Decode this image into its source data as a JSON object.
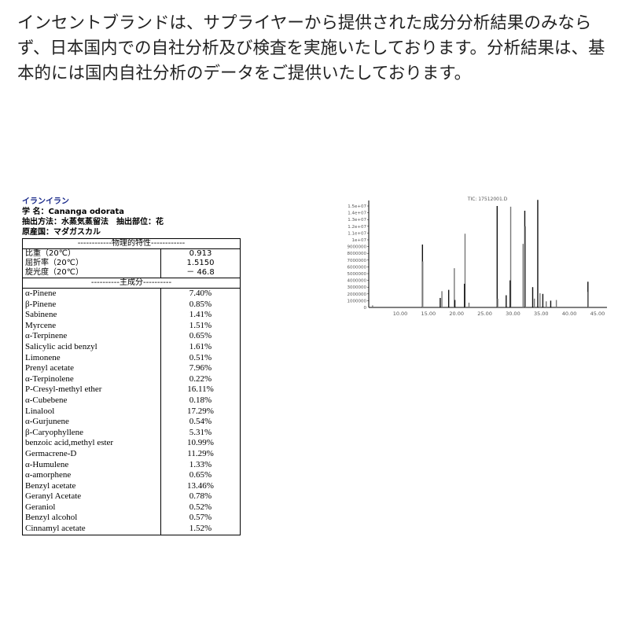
{
  "intro": "インセントブランドは、サプライヤーから提供された成分分析結果のみならず、日本国内での自社分析及び検査を実施いたしております。分析結果は、基本的には国内自社分析のデータをご提供いたしております。",
  "sheet": {
    "title": "イランイラン",
    "scientific": "学 名：Cananga odorata",
    "method": "抽出方法：水蒸気蒸留法　抽出部位：花",
    "origin": "原産国：マダガスカル",
    "phys_header": "------------物理的特性------------",
    "phys": [
      {
        "k": "比重（20℃）",
        "v": "0.913"
      },
      {
        "k": "屈折率（20℃）",
        "v": "1.5150"
      },
      {
        "k": "旋光度（20℃）",
        "v": "－ 46.8"
      }
    ],
    "comp_header": "----------主成分----------",
    "components": [
      {
        "k": "α-Pinene",
        "v": "7.40%"
      },
      {
        "k": "β-Pinene",
        "v": "0.85%"
      },
      {
        "k": "Sabinene",
        "v": "1.41%"
      },
      {
        "k": "Myrcene",
        "v": "1.51%"
      },
      {
        "k": "α-Terpinene",
        "v": "0.65%"
      },
      {
        "k": "Salicylic acid benzyl",
        "v": "1.61%"
      },
      {
        "k": "Limonene",
        "v": "0.51%"
      },
      {
        "k": "Prenyl acetate",
        "v": "7.96%"
      },
      {
        "k": "α-Terpinolene",
        "v": "0.22%"
      },
      {
        "k": "P-Cresyl-methyl ether",
        "v": "16.11%"
      },
      {
        "k": "α-Cubebene",
        "v": "0.18%"
      },
      {
        "k": "Linalool",
        "v": "17.29%"
      },
      {
        "k": "α-Gurjunene",
        "v": "0.54%"
      },
      {
        "k": "β-Caryophyllene",
        "v": "5.31%"
      },
      {
        "k": "benzoic acid,methyl ester",
        "v": "10.99%"
      },
      {
        "k": "Germacrene-D",
        "v": "11.29%"
      },
      {
        "k": "α-Humulene",
        "v": "1.33%"
      },
      {
        "k": "α-amorphene",
        "v": "0.65%"
      },
      {
        "k": "Benzyl acetate",
        "v": "13.46%"
      },
      {
        "k": "Geranyl Acetate",
        "v": "0.78%"
      },
      {
        "k": "Geraniol",
        "v": "0.52%"
      },
      {
        "k": "Benzyl alcohol",
        "v": "0.57%"
      },
      {
        "k": "Cinnamyl acetate",
        "v": "1.52%"
      }
    ]
  },
  "chart_data": {
    "type": "bar",
    "title": "TIC: 17512001.D",
    "xlim": [
      2,
      47
    ],
    "ylim": [
      0,
      16000000
    ],
    "xticks": [
      "10.00",
      "15.00",
      "20.00",
      "25.00",
      "30.00",
      "35.00",
      "40.00",
      "45.00"
    ],
    "yticks": [
      "1000000",
      "2000000",
      "3000000",
      "4000000",
      "5000000",
      "6000000",
      "7000000",
      "8000000",
      "9000000",
      "1e+07",
      "1.1e+07",
      "1.2e+07",
      "1.3e+07",
      "1.4e+07",
      "1.5e+07"
    ],
    "peaks": [
      [
        5.1,
        300000
      ],
      [
        13.95,
        9300000
      ],
      [
        14.0,
        6800000
      ],
      [
        17.1,
        1400000
      ],
      [
        17.4,
        2400000
      ],
      [
        18.6,
        2600000
      ],
      [
        19.6,
        5800000
      ],
      [
        19.7,
        1100000
      ],
      [
        21.5,
        10900000
      ],
      [
        21.4,
        3500000
      ],
      [
        22.2,
        700000
      ],
      [
        27.2,
        15000000
      ],
      [
        27.3,
        1300000
      ],
      [
        28.8,
        1800000
      ],
      [
        29.6,
        14900000
      ],
      [
        29.5,
        4000000
      ],
      [
        31.8,
        9400000
      ],
      [
        32.1,
        14300000
      ],
      [
        32.2,
        12000000
      ],
      [
        33.5,
        3000000
      ],
      [
        33.8,
        1300000
      ],
      [
        34.4,
        15900000
      ],
      [
        34.8,
        2100000
      ],
      [
        35.3,
        2000000
      ],
      [
        35.9,
        900000
      ],
      [
        36.7,
        1000000
      ],
      [
        37.7,
        1100000
      ],
      [
        43.3,
        3800000
      ],
      [
        43.35,
        2300000
      ]
    ]
  }
}
